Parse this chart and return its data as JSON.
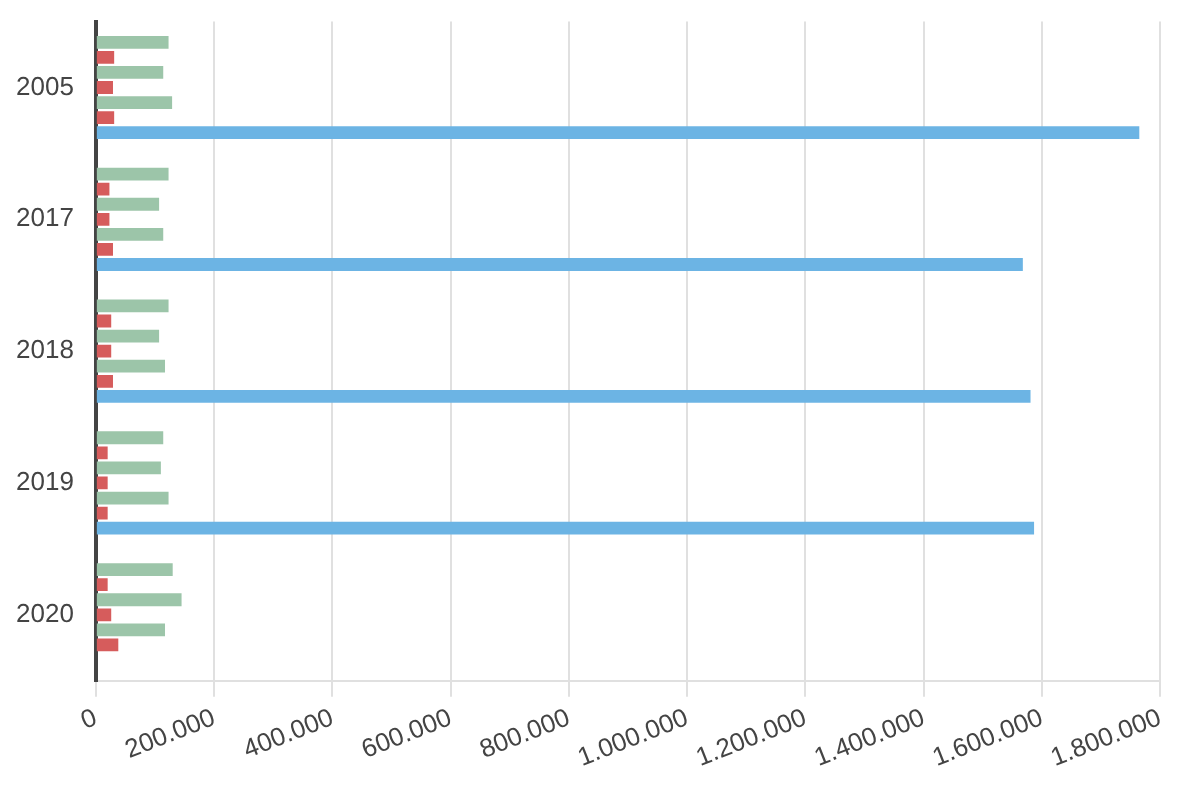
{
  "chart_data": {
    "type": "bar",
    "orientation": "horizontal",
    "categories": [
      "2005",
      "2017",
      "2018",
      "2019",
      "2020"
    ],
    "series": [
      {
        "color": "#9cc5a9",
        "values": [
          123000,
          123000,
          123000,
          114000,
          130000
        ]
      },
      {
        "color": "#d65c5c",
        "values": [
          31000,
          23000,
          26000,
          20000,
          20000
        ]
      },
      {
        "color": "#9cc5a9",
        "values": [
          114000,
          107000,
          107000,
          110000,
          145000
        ]
      },
      {
        "color": "#d65c5c",
        "values": [
          29000,
          23000,
          26000,
          20000,
          26000
        ]
      },
      {
        "color": "#9cc5a9",
        "values": [
          129000,
          114000,
          117000,
          123000,
          117000
        ]
      },
      {
        "color": "#d65c5c",
        "values": [
          31000,
          29000,
          29000,
          20000,
          38000
        ]
      },
      {
        "color": "#6cb4e4",
        "values": [
          1765000,
          1568000,
          1581000,
          1587000,
          null
        ]
      }
    ],
    "xlim": [
      0,
      1800000
    ],
    "xticks": [
      0,
      {
        "value": 200000,
        "label": "200.000"
      },
      {
        "value": 400000,
        "label": "400.000"
      },
      {
        "value": 600000,
        "label": "600.000"
      },
      {
        "value": 800000,
        "label": "800.000"
      },
      {
        "value": 1000000,
        "label": "1.000.000"
      },
      {
        "value": 1200000,
        "label": "1.200.000"
      },
      {
        "value": 1400000,
        "label": "1.400.000"
      },
      {
        "value": 1600000,
        "label": "1.600.000"
      },
      {
        "value": 1800000,
        "label": "1.800.000"
      }
    ],
    "grid": "x",
    "legend": false
  }
}
